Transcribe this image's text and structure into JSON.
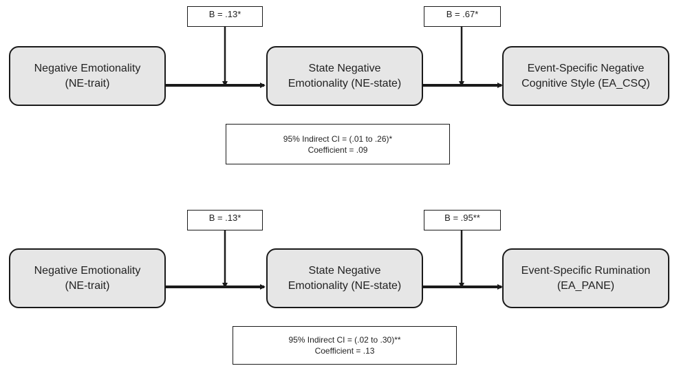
{
  "diagrams": [
    {
      "predictor": {
        "line1": "Negative Emotionality",
        "line2": "(NE-trait)"
      },
      "mediator": {
        "line1": "State Negative",
        "line2": "Emotionality (NE-state)"
      },
      "outcome": {
        "line1": "Event-Specific Negative",
        "line2": "Cognitive Style (EA_CSQ)"
      },
      "path_a": "B = .13*",
      "path_b": "B = .67*",
      "indirect_ci": "95% Indirect CI = (.01 to .26)*",
      "coefficient": "Coefficient = .09"
    },
    {
      "predictor": {
        "line1": "Negative Emotionality",
        "line2": "(NE-trait)"
      },
      "mediator": {
        "line1": "State Negative",
        "line2": "Emotionality (NE-state)"
      },
      "outcome": {
        "line1": "Event-Specific Rumination",
        "line2": "(EA_PANE)"
      },
      "path_a": "B = .13*",
      "path_b": "B = .95**",
      "indirect_ci": "95% Indirect CI = (.02 to .30)**",
      "coefficient": "Coefficient = .13"
    }
  ]
}
